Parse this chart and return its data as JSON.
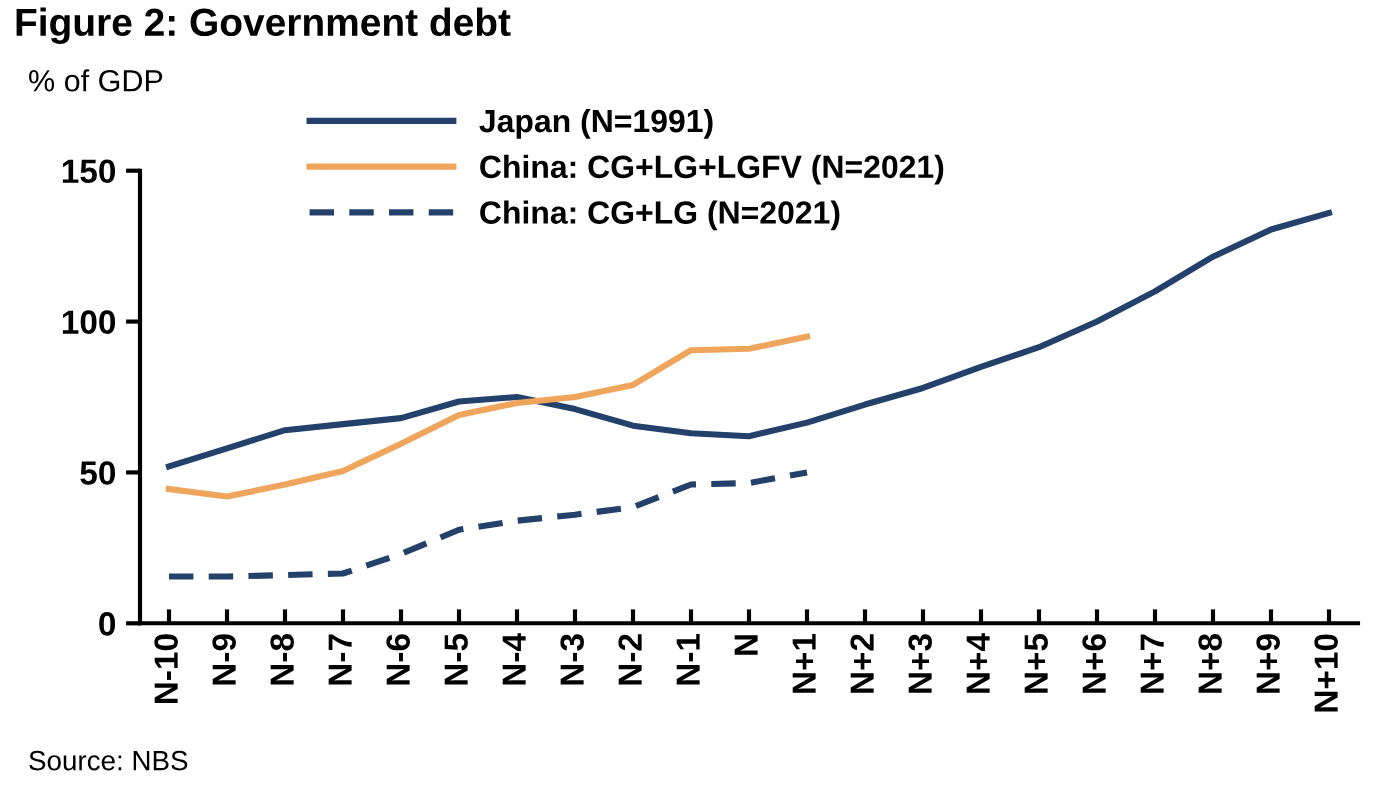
{
  "chart_data": {
    "type": "line",
    "title": "Figure 2: Government debt",
    "ylabel": "% of GDP",
    "categories": [
      "N-10",
      "N-9",
      "N-8",
      "N-7",
      "N-6",
      "N-5",
      "N-4",
      "N-3",
      "N-2",
      "N-1",
      "N",
      "N+1",
      "N+2",
      "N+3",
      "N+4",
      "N+5",
      "N+6",
      "N+7",
      "N+8",
      "N+9",
      "N+10"
    ],
    "series": [
      {
        "name": "Japan (N=1991)",
        "color": "#23416b",
        "line_style": "solid",
        "values": [
          52,
          58,
          64,
          66,
          68,
          73.5,
          75,
          71,
          65.5,
          63,
          62,
          66.5,
          72.5,
          78,
          85,
          91.5,
          100,
          110,
          121.5,
          130.5,
          136
        ]
      },
      {
        "name": "China: CG+LG+LGFV (N=2021)",
        "color": "#f0a55c",
        "line_style": "solid",
        "values": [
          44.5,
          42,
          46,
          50.5,
          59.5,
          69,
          73,
          75,
          79,
          90.5,
          91,
          95,
          null,
          null,
          null,
          null,
          null,
          null,
          null,
          null,
          null
        ]
      },
      {
        "name": "China: CG+LG (N=2021)",
        "color": "#23416b",
        "line_style": "dashed",
        "values": [
          15.5,
          15.5,
          16,
          16.5,
          23,
          31,
          34,
          36,
          38.5,
          46,
          46.5,
          50,
          null,
          null,
          null,
          null,
          null,
          null,
          null,
          null,
          null
        ]
      }
    ],
    "ylim": [
      0,
      150
    ],
    "yticks": [
      0,
      50,
      100,
      150
    ],
    "grid": false,
    "legend": "top",
    "marker": "none",
    "annotations": [
      "Source: NBS"
    ]
  }
}
